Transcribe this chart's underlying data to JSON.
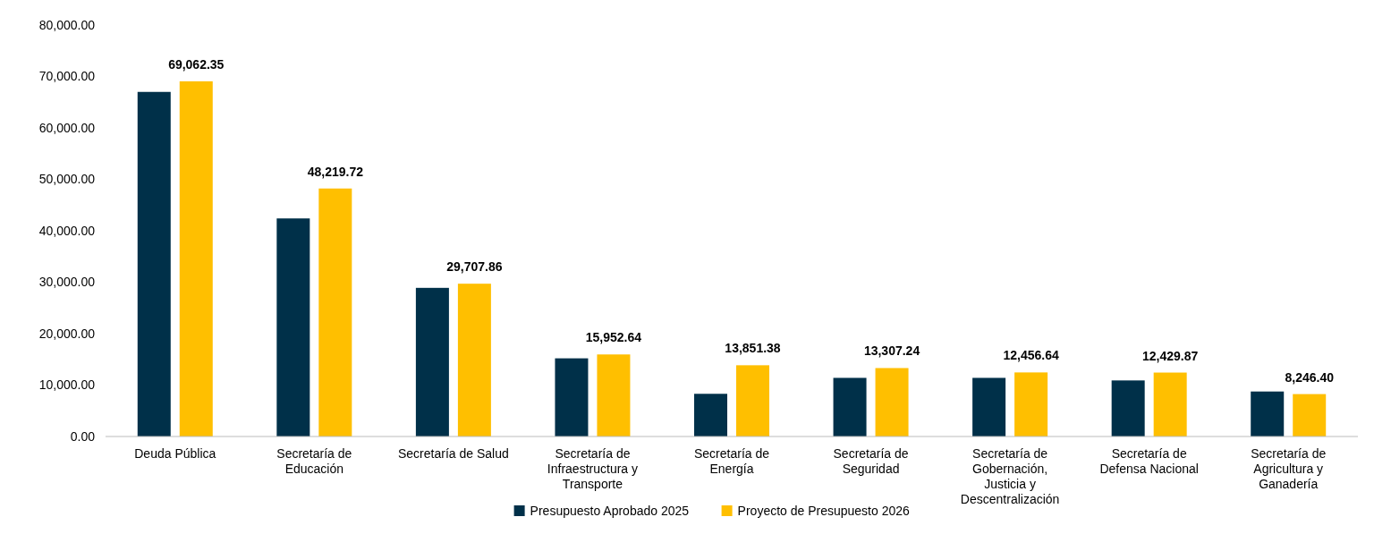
{
  "chart_data": {
    "type": "bar",
    "categories": [
      "Deuda Pública",
      "Secretaría de Educación",
      "Secretaría de Salud",
      "Secretaría de Infraestructura y Transporte",
      "Secretaría de Energía",
      "Secretaría de Seguridad",
      "Secretaría de Gobernación, Justicia y Descentralización",
      "Secretaría de Defensa Nacional",
      "Secretaría de Agricultura y Ganadería"
    ],
    "series": [
      {
        "name": "Presupuesto Aprobado 2025",
        "color": "#003049",
        "values": [
          67000,
          42400,
          28900,
          15200,
          8300,
          11400,
          11400,
          10900,
          8750
        ]
      },
      {
        "name": "Proyecto de Presupuesto 2026",
        "color": "#ffbf00",
        "values": [
          69062.35,
          48219.72,
          29707.86,
          15952.64,
          13851.38,
          13307.24,
          12456.64,
          12429.87,
          8246.4
        ],
        "value_labels": [
          "69,062.35",
          "48,219.72",
          "29,707.86",
          "15,952.64",
          "13,851.38",
          "13,307.24",
          "12,456.64",
          "12,429.87",
          "8,246.40"
        ]
      }
    ],
    "ylim": [
      0,
      80000
    ],
    "yticks": [
      {
        "value": 0,
        "label": "0.00"
      },
      {
        "value": 10000,
        "label": "10,000.00"
      },
      {
        "value": 20000,
        "label": "20,000.00"
      },
      {
        "value": 30000,
        "label": "30,000.00"
      },
      {
        "value": 40000,
        "label": "40,000.00"
      },
      {
        "value": 50000,
        "label": "50,000.00"
      },
      {
        "value": 60000,
        "label": "60,000.00"
      },
      {
        "value": 70000,
        "label": "70,000.00"
      },
      {
        "value": 80000,
        "label": "80,000.00"
      }
    ],
    "grid": false,
    "legend": "bottom"
  }
}
